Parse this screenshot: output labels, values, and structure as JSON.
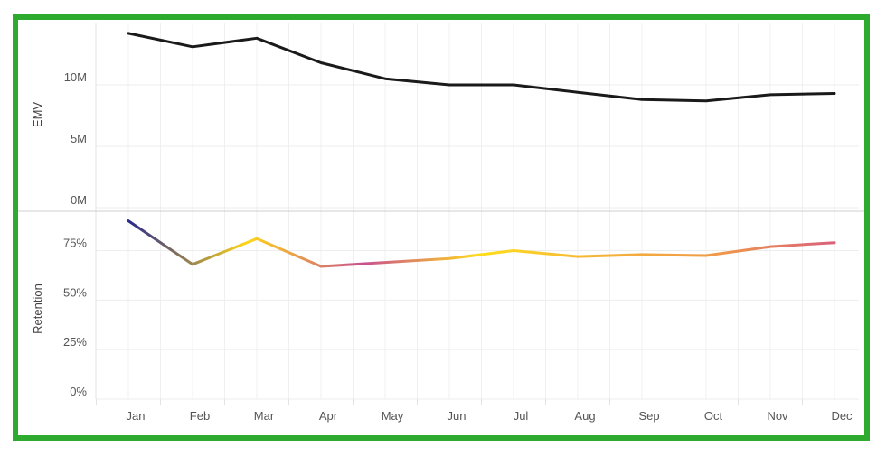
{
  "chart_data": [
    {
      "type": "line",
      "ylabel": "EMV",
      "categories": [
        "Jan",
        "Feb",
        "Mar",
        "Apr",
        "May",
        "Jun",
        "Jul",
        "Aug",
        "Sep",
        "Oct",
        "Nov",
        "Dec"
      ],
      "values": [
        14200000,
        13100000,
        13800000,
        11800000,
        10500000,
        10000000,
        10000000,
        9400000,
        8800000,
        8700000,
        9200000,
        9300000
      ],
      "yticks": [
        "0M",
        "5M",
        "10M"
      ],
      "ytick_values": [
        0,
        5000000,
        10000000
      ],
      "ylim": [
        0,
        15000000
      ],
      "grid": true,
      "line_color": "#1a1a1a"
    },
    {
      "type": "line",
      "ylabel": "Retention",
      "categories": [
        "Jan",
        "Feb",
        "Mar",
        "Apr",
        "May",
        "Jun",
        "Jul",
        "Aug",
        "Sep",
        "Oct",
        "Nov",
        "Dec"
      ],
      "values": [
        0.9,
        0.68,
        0.81,
        0.67,
        0.69,
        0.71,
        0.75,
        0.72,
        0.73,
        0.725,
        0.77,
        0.79
      ],
      "yticks": [
        "0%",
        "25%",
        "50%",
        "75%"
      ],
      "ytick_values": [
        0,
        0.25,
        0.5,
        0.75
      ],
      "ylim": [
        0,
        0.93
      ],
      "grid": true,
      "gradient_colors": [
        "#2a2a8a",
        "#ffd61a",
        "#c8508f",
        "#ffdd1a",
        "#f4b33a",
        "#f09a48",
        "#d9607a"
      ]
    }
  ]
}
